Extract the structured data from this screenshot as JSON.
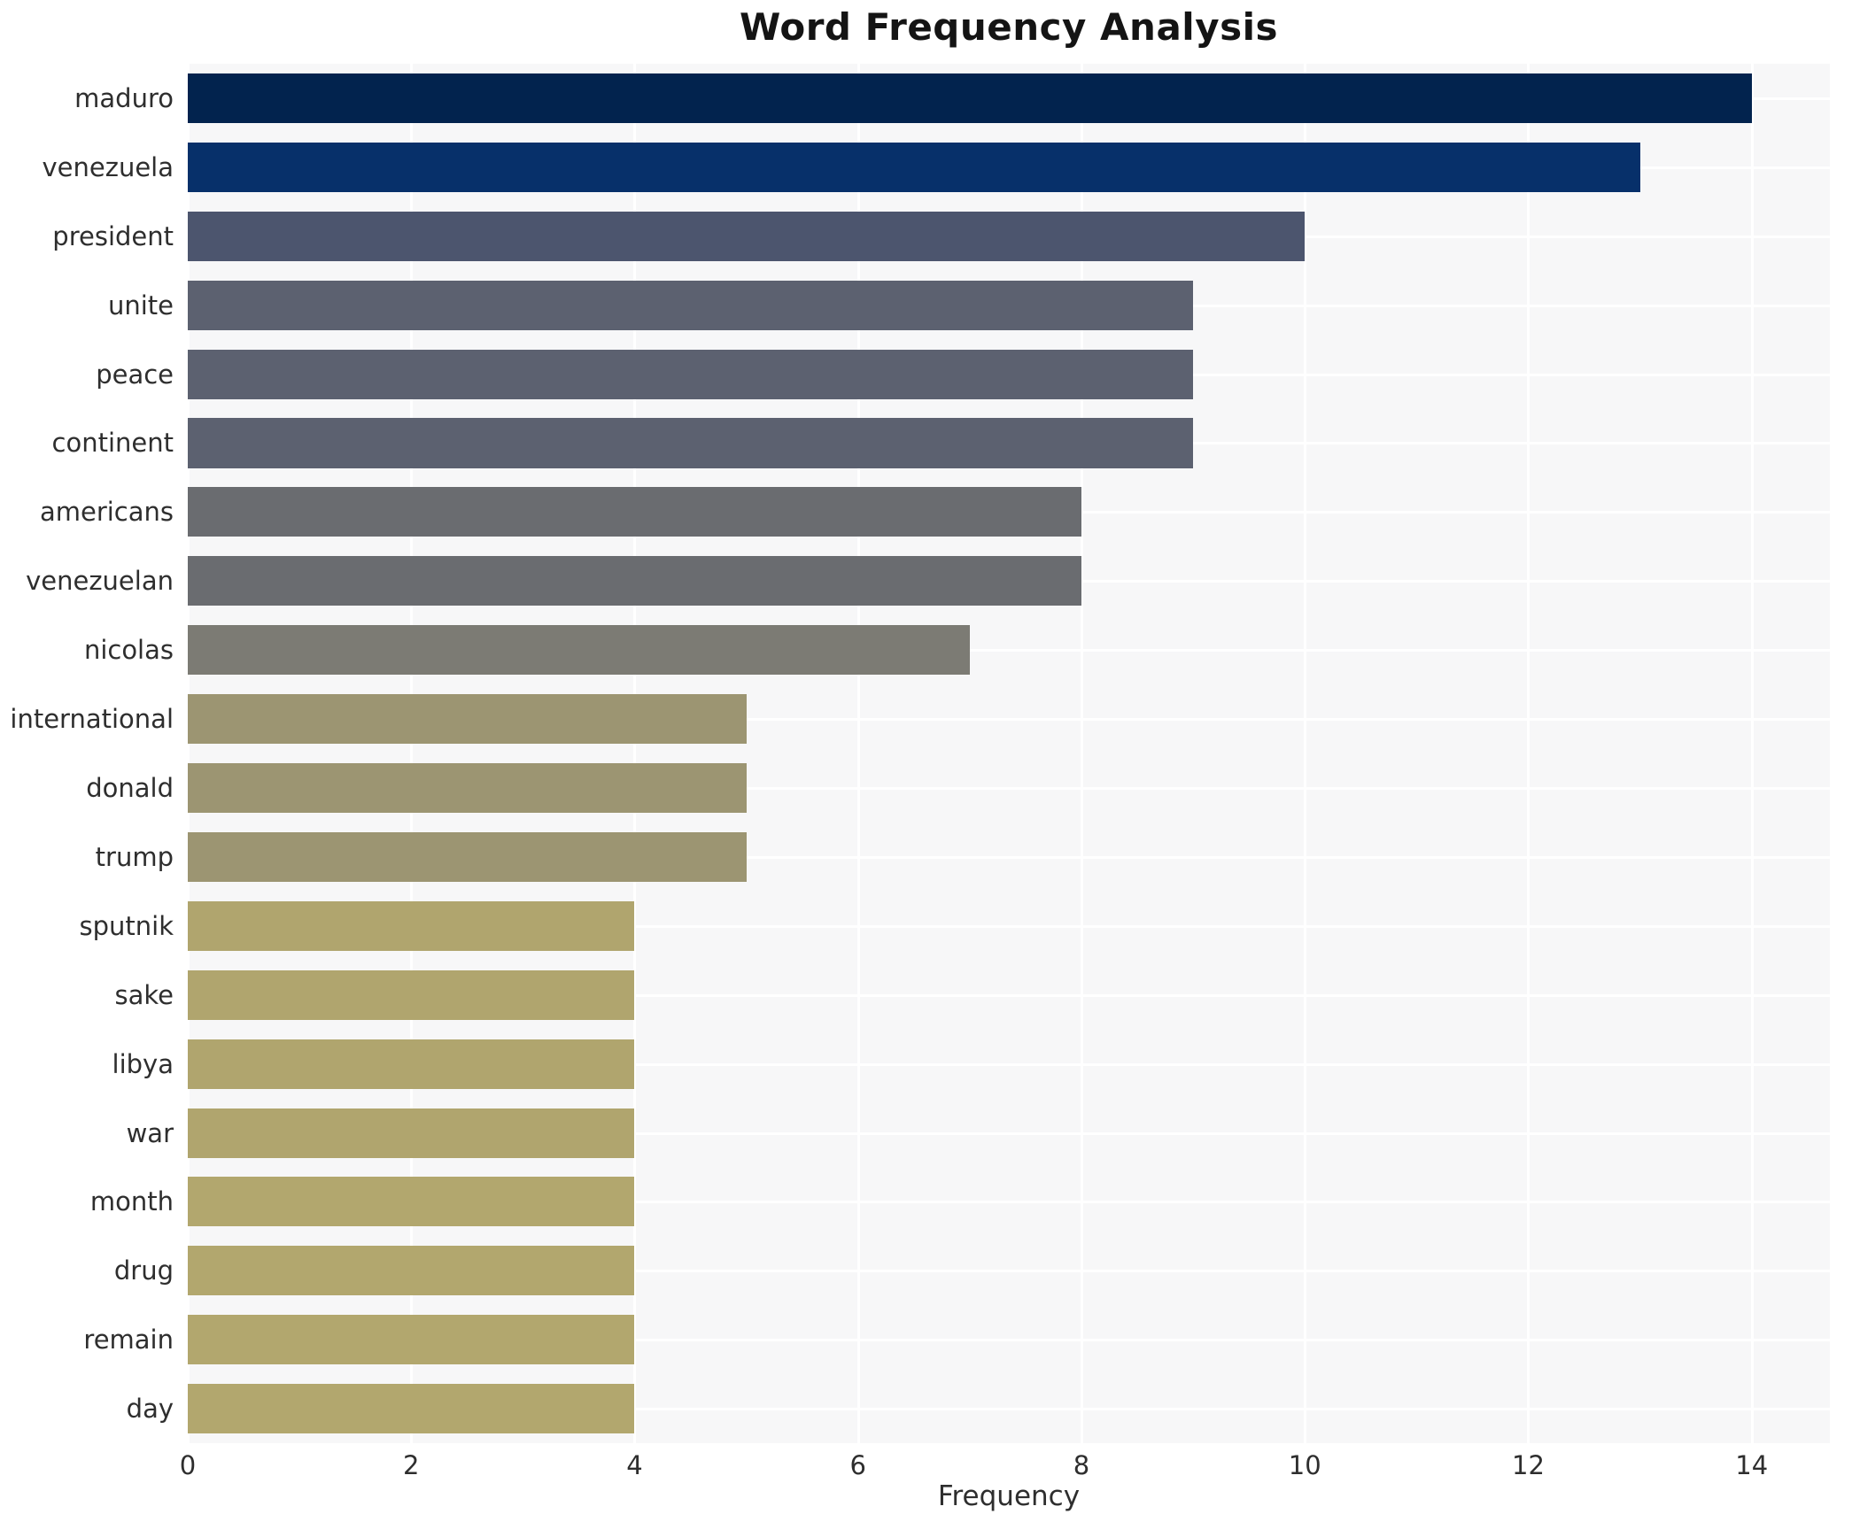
{
  "chart_data": {
    "type": "bar",
    "orientation": "horizontal",
    "title": "Word Frequency Analysis",
    "xlabel": "Frequency",
    "ylabel": "",
    "categories": [
      "maduro",
      "venezuela",
      "president",
      "unite",
      "peace",
      "continent",
      "americans",
      "venezuelan",
      "nicolas",
      "international",
      "donald",
      "trump",
      "sputnik",
      "sake",
      "libya",
      "war",
      "month",
      "drug",
      "remain",
      "day"
    ],
    "values": [
      14,
      13,
      10,
      9,
      9,
      9,
      8,
      8,
      7,
      5,
      5,
      5,
      4,
      4,
      4,
      4,
      4,
      4,
      4,
      4
    ],
    "bar_colors": [
      "#02234e",
      "#07306a",
      "#4c556e",
      "#5c6170",
      "#5c6170",
      "#5c6170",
      "#6a6c70",
      "#6a6c70",
      "#7c7b74",
      "#9c9572",
      "#9c9572",
      "#9c9572",
      "#b0a56e",
      "#b0a56e",
      "#b0a56e",
      "#b0a56e",
      "#b2a76e",
      "#b2a76e",
      "#b2a76e",
      "#b2a76e"
    ],
    "xticks": [
      0,
      2,
      4,
      6,
      8,
      10,
      12,
      14
    ],
    "xlim": [
      0,
      14.7
    ],
    "grid": "white gridlines on light panel, vertical at xticks and horizontal at bar centers",
    "legend_position": "none"
  },
  "colors": {
    "plot_background": "#f7f7f8",
    "gridline": "#ffffff",
    "title_text": "#141414",
    "tick_text": "#2e2e2e",
    "page_background": "#ffffff"
  }
}
